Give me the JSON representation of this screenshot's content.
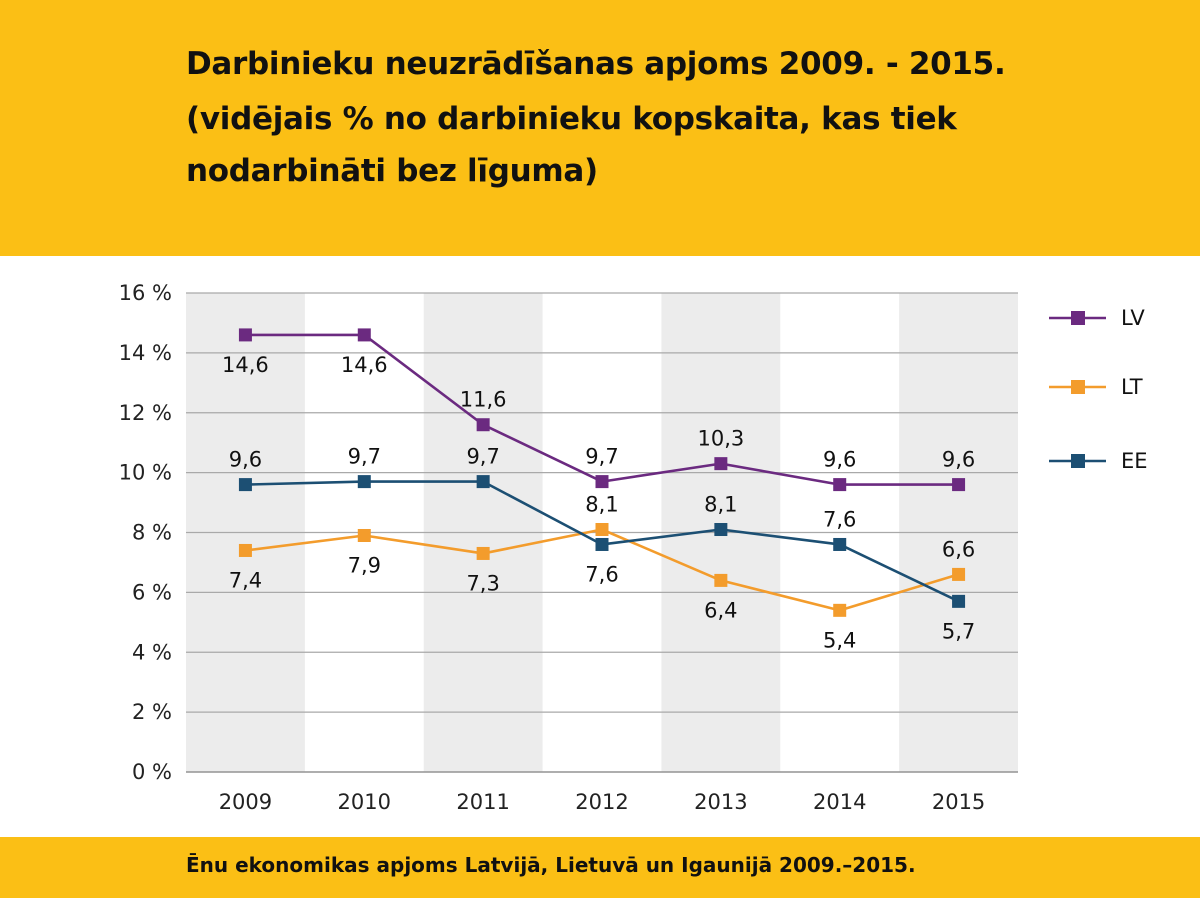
{
  "header": {
    "title_lines": [
      "Darbinieku neuzrādīšanas apjoms 2009. - 2015.",
      "(vidējais % no darbinieku kopskaita, kas tiek",
      "nodarbināti bez līguma)"
    ],
    "background": "#fbbf15"
  },
  "footer": {
    "source": "Ēnu ekonomikas apjoms  Latvijā, Lietuvā un Igaunijā  2009.–2015."
  },
  "chart_data": {
    "type": "line",
    "title": "",
    "xlabel": "",
    "ylabel": "",
    "categories": [
      "2009",
      "2010",
      "2011",
      "2012",
      "2013",
      "2014",
      "2015"
    ],
    "ylim": [
      0,
      16
    ],
    "yticks": [
      0,
      2,
      4,
      6,
      8,
      10,
      12,
      14,
      16
    ],
    "ytick_labels": [
      "0 %",
      "2 %",
      "4 %",
      "6 %",
      "8 %",
      "10 %",
      "12 %",
      "14 %",
      "16 %"
    ],
    "grid": true,
    "alternating_column_shading": true,
    "legend_position": "right",
    "series": [
      {
        "name": "LV",
        "color": "#6b2a80",
        "values": [
          14.6,
          14.6,
          11.6,
          9.7,
          10.3,
          9.6,
          9.6
        ],
        "labels": [
          "14,6",
          "14,6",
          "11,6",
          "9,7",
          "10,3",
          "9,6",
          "9,6"
        ]
      },
      {
        "name": "LT",
        "color": "#f39c2c",
        "values": [
          7.4,
          7.9,
          7.3,
          8.1,
          6.4,
          5.4,
          6.6
        ],
        "labels": [
          "7,4",
          "7,9",
          "7,3",
          "8,1",
          "6,4",
          "5,4",
          "6,6"
        ]
      },
      {
        "name": "EE",
        "color": "#1c4f73",
        "values": [
          9.6,
          9.7,
          9.7,
          7.6,
          8.1,
          7.6,
          5.7
        ],
        "labels": [
          "9,6",
          "9,7",
          "9,7",
          "7,6",
          "8,1",
          "7,6",
          "5,7"
        ]
      }
    ]
  }
}
